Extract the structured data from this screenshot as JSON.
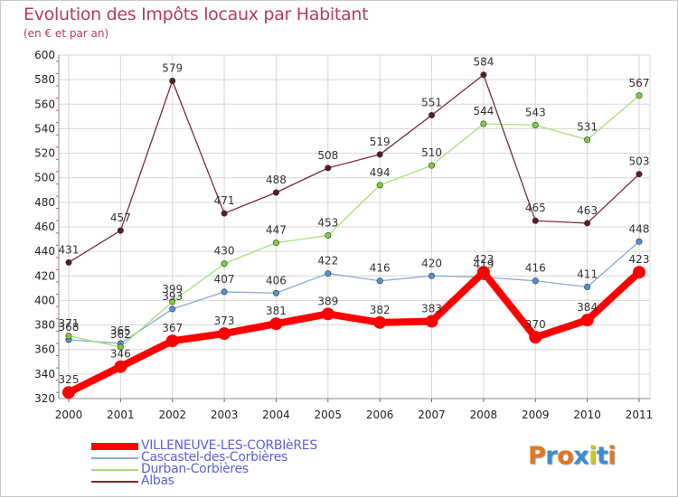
{
  "header": {
    "title": "Evolution des Impôts locaux par Habitant",
    "subtitle": "(en € et par an)"
  },
  "brand": {
    "letters": [
      "P",
      "r",
      "o",
      "x",
      "i",
      "t",
      "i"
    ],
    "colors": [
      "#e07820",
      "#3a8fd0",
      "#e07820",
      "#3a8fd0",
      "#c8c820",
      "#3a8fd0",
      "#e07820"
    ]
  },
  "chart_data": {
    "type": "line",
    "title": "Evolution des Impôts locaux par Habitant",
    "subtitle": "(en € et par an)",
    "xlabel": "",
    "ylabel": "",
    "x": [
      "2000",
      "2001",
      "2002",
      "2003",
      "2004",
      "2005",
      "2006",
      "2007",
      "2008",
      "2009",
      "2010",
      "2011"
    ],
    "ylim": [
      320,
      600
    ],
    "yticks": [
      320,
      340,
      360,
      380,
      400,
      420,
      440,
      460,
      480,
      500,
      520,
      540,
      560,
      580,
      600
    ],
    "grid": true,
    "legend_position": "bottom-left",
    "series": [
      {
        "name": "VILLENEUVE-LES-CORBIèRES",
        "values": [
          325,
          346,
          367,
          373,
          381,
          389,
          382,
          383,
          423,
          370,
          384,
          423
        ],
        "labels": [
          "325",
          "346",
          "367",
          "373",
          "381",
          "389",
          "382",
          "383",
          "423",
          "370",
          "384",
          "423"
        ],
        "color": "#ff0000",
        "marker": "#ff0000",
        "emphasis": true
      },
      {
        "name": "Cascastel-des-Corbières",
        "values": [
          368,
          365,
          393,
          407,
          406,
          422,
          416,
          420,
          419,
          416,
          411,
          448
        ],
        "labels": [
          "368",
          "365",
          "393",
          "407",
          "406",
          "422",
          "416",
          "420",
          "419",
          "416",
          "411",
          "448"
        ],
        "color": "#8aa9cf",
        "marker": "#4f93d6",
        "emphasis": false
      },
      {
        "name": "Durban-Corbières",
        "values": [
          371,
          362,
          399,
          430,
          447,
          453,
          494,
          510,
          544,
          543,
          531,
          567
        ],
        "labels": [
          "371",
          "362",
          "399",
          "430",
          "447",
          "453",
          "494",
          "510",
          "544",
          "543",
          "531",
          "567"
        ],
        "color": "#a6e07a",
        "marker": "#7cd03c",
        "emphasis": false
      },
      {
        "name": "Albas",
        "values": [
          431,
          457,
          579,
          471,
          488,
          508,
          519,
          551,
          584,
          465,
          463,
          503
        ],
        "labels": [
          "431",
          "457",
          "579",
          "471",
          "488",
          "508",
          "519",
          "551",
          "584",
          "465",
          "463",
          "503"
        ],
        "color": "#7a2a3a",
        "marker": "#5a1a22",
        "emphasis": false
      }
    ]
  }
}
